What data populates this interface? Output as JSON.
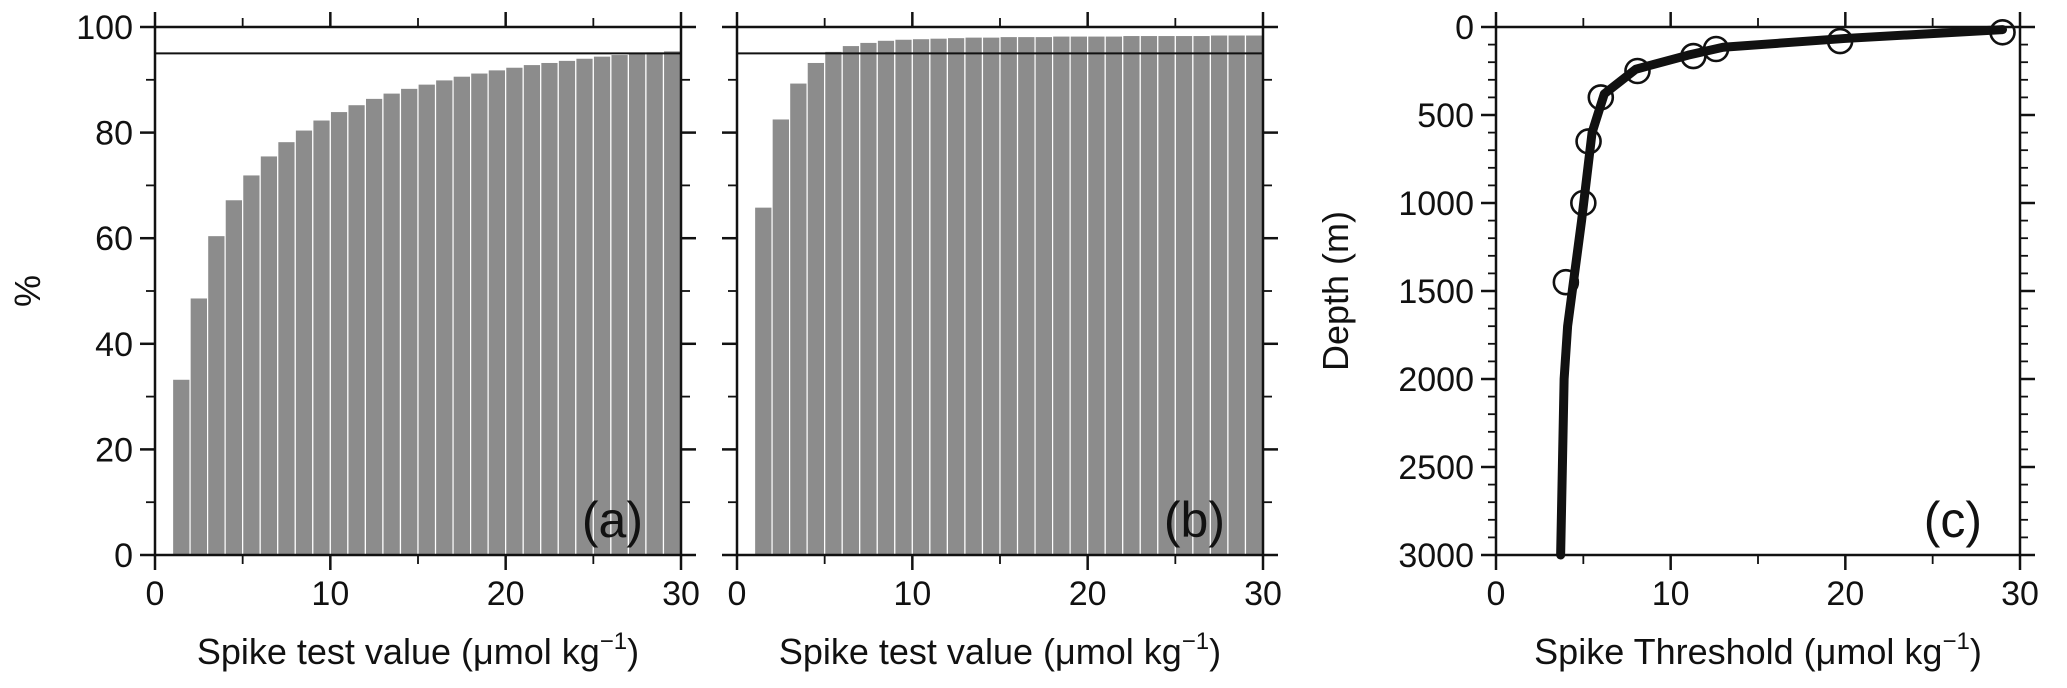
{
  "colors": {
    "bar": "#8c8c8c",
    "line": "#111111",
    "background": "#ffffff"
  },
  "chart_data": [
    {
      "type": "bar",
      "panel_label": "(a)",
      "xlabel_main": "Spike test value (μmol kg",
      "xlabel_sup": "−1",
      "xlabel_end": ")",
      "ylabel": "%",
      "xlim": [
        0,
        30
      ],
      "ylim": [
        0,
        100
      ],
      "xticks": [
        "0",
        "10",
        "20",
        "30"
      ],
      "yticks": [
        "0",
        "20",
        "40",
        "60",
        "80",
        "100"
      ],
      "reference_lines": [
        95,
        100
      ],
      "bar_start": 1,
      "bar_width": 1,
      "values": [
        33.3,
        48.7,
        60.5,
        67.3,
        72.0,
        75.6,
        78.3,
        80.5,
        82.4,
        84.0,
        85.3,
        86.5,
        87.5,
        88.4,
        89.2,
        90.0,
        90.7,
        91.3,
        91.9,
        92.4,
        92.9,
        93.3,
        93.7,
        94.1,
        94.5,
        94.8,
        95.1,
        95.3,
        95.5
      ]
    },
    {
      "type": "bar",
      "panel_label": "(b)",
      "xlabel_main": "Spike test value (μmol kg",
      "xlabel_sup": "−1",
      "xlabel_end": ")",
      "ylabel": "",
      "xlim": [
        0,
        30
      ],
      "ylim": [
        0,
        100
      ],
      "xticks": [
        "0",
        "10",
        "20",
        "30"
      ],
      "yticks": [],
      "reference_lines": [
        95,
        100
      ],
      "bar_start": 1,
      "bar_width": 1,
      "values": [
        65.9,
        82.6,
        89.4,
        93.3,
        95.4,
        96.5,
        97.1,
        97.5,
        97.7,
        97.8,
        97.9,
        98.0,
        98.1,
        98.1,
        98.2,
        98.2,
        98.2,
        98.3,
        98.3,
        98.3,
        98.3,
        98.4,
        98.4,
        98.4,
        98.4,
        98.4,
        98.5,
        98.5,
        98.5
      ]
    },
    {
      "type": "line",
      "panel_label": "(c)",
      "xlabel_main": "Spike Threshold (μmol kg",
      "xlabel_sup": "−1",
      "xlabel_end": ")",
      "ylabel": "Depth (m)",
      "xlim": [
        0,
        30
      ],
      "ylim": [
        3000,
        0
      ],
      "y_inverted": true,
      "xticks": [
        "0",
        "10",
        "20",
        "30"
      ],
      "yticks": [
        "0",
        "500",
        "1000",
        "1500",
        "2000",
        "2500",
        "3000"
      ],
      "series": [
        {
          "role": "fit",
          "x": [
            29.0,
            20.0,
            13.0,
            11.0,
            8.0,
            6.2,
            5.5,
            5.2,
            4.9,
            4.5,
            4.1,
            3.9,
            3.8,
            3.7
          ],
          "y": [
            15,
            65,
            115,
            160,
            240,
            380,
            600,
            850,
            1100,
            1400,
            1700,
            2000,
            2500,
            3000
          ]
        },
        {
          "role": "observations",
          "x": [
            29.0,
            19.7,
            12.6,
            11.3,
            8.1,
            6.0,
            5.3,
            5.0,
            4.0
          ],
          "y": [
            30,
            80,
            125,
            165,
            250,
            400,
            650,
            1000,
            1450
          ]
        }
      ]
    }
  ]
}
